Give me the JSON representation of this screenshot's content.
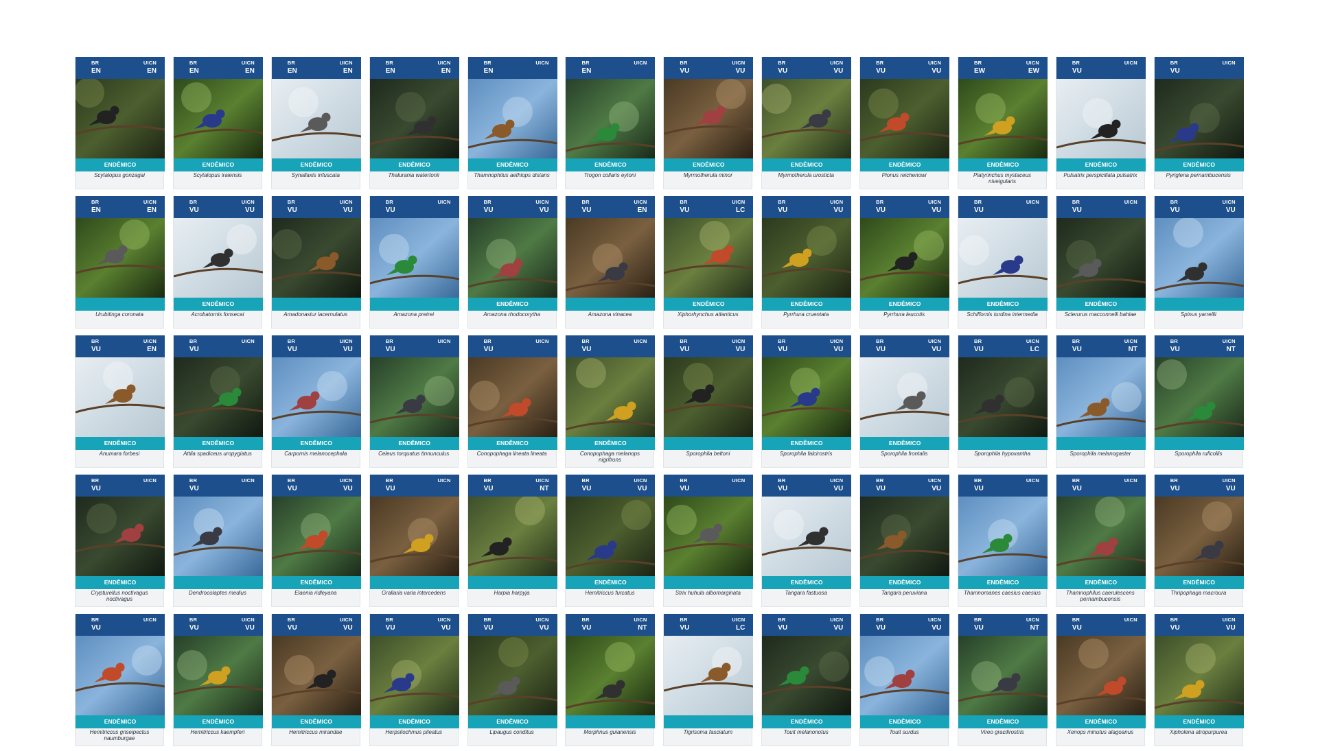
{
  "labels": {
    "br": "BR",
    "uicn": "UICN",
    "endemic": "ENDÊMICO"
  },
  "colors": {
    "header": "#1c4f8b",
    "endemic_band": "#17a3b8"
  },
  "cards": [
    {
      "br": "EN",
      "uicn": "EN",
      "endemic": true,
      "species": "Scytalopus gonzagai"
    },
    {
      "br": "EN",
      "uicn": "EN",
      "endemic": true,
      "species": "Scytalopus iraiensis"
    },
    {
      "br": "EN",
      "uicn": "EN",
      "endemic": true,
      "species": "Synallaxis infuscata"
    },
    {
      "br": "EN",
      "uicn": "EN",
      "endemic": true,
      "species": "Thalurania watertonii"
    },
    {
      "br": "EN",
      "uicn": "",
      "endemic": true,
      "species": "Thamnophilus aethiops distans"
    },
    {
      "br": "EN",
      "uicn": "",
      "endemic": true,
      "species": "Trogon collaris eytoni"
    },
    {
      "br": "VU",
      "uicn": "VU",
      "endemic": true,
      "species": "Myrmotherula minor"
    },
    {
      "br": "VU",
      "uicn": "VU",
      "endemic": true,
      "species": "Myrmotherula urosticta"
    },
    {
      "br": "VU",
      "uicn": "VU",
      "endemic": true,
      "species": "Pionus reichenowi"
    },
    {
      "br": "EW",
      "uicn": "EW",
      "endemic": true,
      "species": "Platyrinchus mystaceus niveigularis"
    },
    {
      "br": "VU",
      "uicn": "",
      "endemic": true,
      "species": "Pulsatrix perspicillata pulsatrix"
    },
    {
      "br": "VU",
      "uicn": "",
      "endemic": true,
      "species": "Pyriglena pernambucensis"
    },
    {
      "br": "EN",
      "uicn": "EN",
      "endemic": false,
      "species": "Urubitinga coronata"
    },
    {
      "br": "VU",
      "uicn": "VU",
      "endemic": true,
      "species": "Acrobatornis fonsecai"
    },
    {
      "br": "VU",
      "uicn": "VU",
      "endemic": false,
      "species": "Amadonastur lacernulatus"
    },
    {
      "br": "VU",
      "uicn": "",
      "endemic": false,
      "species": "Amazona pretrei"
    },
    {
      "br": "VU",
      "uicn": "VU",
      "endemic": true,
      "species": "Amazona rhodocorytha"
    },
    {
      "br": "VU",
      "uicn": "EN",
      "endemic": false,
      "species": "Amazona vinacea"
    },
    {
      "br": "VU",
      "uicn": "LC",
      "endemic": true,
      "species": "Xiphorhynchus atlanticus"
    },
    {
      "br": "VU",
      "uicn": "VU",
      "endemic": true,
      "species": "Pyrrhura cruentata"
    },
    {
      "br": "VU",
      "uicn": "VU",
      "endemic": true,
      "species": "Pyrrhura leucotis"
    },
    {
      "br": "VU",
      "uicn": "",
      "endemic": true,
      "species": "Schiffornis turdina intermedia"
    },
    {
      "br": "VU",
      "uicn": "",
      "endemic": true,
      "species": "Sclerurus macconnelli bahiae"
    },
    {
      "br": "VU",
      "uicn": "VU",
      "endemic": false,
      "species": "Spinus yarrellii"
    },
    {
      "br": "VU",
      "uicn": "EN",
      "endemic": true,
      "species": "Anumara forbesi"
    },
    {
      "br": "VU",
      "uicn": "",
      "endemic": true,
      "species": "Attila spadiceus uropygiatus"
    },
    {
      "br": "VU",
      "uicn": "VU",
      "endemic": true,
      "species": "Carpornis melanocephala"
    },
    {
      "br": "VU",
      "uicn": "",
      "endemic": true,
      "species": "Celeus torquatus tinnunculus"
    },
    {
      "br": "VU",
      "uicn": "",
      "endemic": true,
      "species": "Conopophaga lineata lineata"
    },
    {
      "br": "VU",
      "uicn": "",
      "endemic": true,
      "species": "Conopophaga melanops nigrifrons"
    },
    {
      "br": "VU",
      "uicn": "VU",
      "endemic": false,
      "species": "Sporophila beltoni"
    },
    {
      "br": "VU",
      "uicn": "VU",
      "endemic": true,
      "species": "Sporophila falcirostris"
    },
    {
      "br": "VU",
      "uicn": "VU",
      "endemic": true,
      "species": "Sporophila frontalis"
    },
    {
      "br": "VU",
      "uicn": "LC",
      "endemic": false,
      "species": "Sporophila hypoxantha"
    },
    {
      "br": "VU",
      "uicn": "NT",
      "endemic": false,
      "species": "Sporophila melanogaster"
    },
    {
      "br": "VU",
      "uicn": "NT",
      "endemic": false,
      "species": "Sporophila ruficollis"
    },
    {
      "br": "VU",
      "uicn": "",
      "endemic": true,
      "species": "Crypturellus noctivagus noctivagus"
    },
    {
      "br": "VU",
      "uicn": "",
      "endemic": false,
      "species": "Dendrocolaptes medius"
    },
    {
      "br": "VU",
      "uicn": "VU",
      "endemic": true,
      "species": "Elaenia ridleyana"
    },
    {
      "br": "VU",
      "uicn": "",
      "endemic": false,
      "species": "Grallaria varia intercedens"
    },
    {
      "br": "VU",
      "uicn": "NT",
      "endemic": false,
      "species": "Harpia harpyja"
    },
    {
      "br": "VU",
      "uicn": "VU",
      "endemic": true,
      "species": "Hemitriccus furcatus"
    },
    {
      "br": "VU",
      "uicn": "",
      "endemic": false,
      "species": "Strix huhula albomarginata"
    },
    {
      "br": "VU",
      "uicn": "VU",
      "endemic": true,
      "species": "Tangara fastuosa"
    },
    {
      "br": "VU",
      "uicn": "VU",
      "endemic": true,
      "species": "Tangara peruviana"
    },
    {
      "br": "VU",
      "uicn": "",
      "endemic": true,
      "species": "Thamnomanes caesius caesius"
    },
    {
      "br": "VU",
      "uicn": "",
      "endemic": true,
      "species": "Thamnophilus caerulescens pernambucensis"
    },
    {
      "br": "VU",
      "uicn": "VU",
      "endemic": true,
      "species": "Thripophaga macroura"
    },
    {
      "br": "VU",
      "uicn": "",
      "endemic": true,
      "species": "Hemitriccus griseipectus naumburgae"
    },
    {
      "br": "VU",
      "uicn": "VU",
      "endemic": true,
      "species": "Hemitriccus kaempferi"
    },
    {
      "br": "VU",
      "uicn": "VU",
      "endemic": true,
      "species": "Hemitriccus mirandae"
    },
    {
      "br": "VU",
      "uicn": "VU",
      "endemic": true,
      "species": "Herpsilochmus pileatus"
    },
    {
      "br": "VU",
      "uicn": "VU",
      "endemic": true,
      "species": "Lipaugus conditus"
    },
    {
      "br": "VU",
      "uicn": "NT",
      "endemic": false,
      "species": "Morphnus guianensis"
    },
    {
      "br": "VU",
      "uicn": "LC",
      "endemic": false,
      "species": "Tigrisoma fasciatum"
    },
    {
      "br": "VU",
      "uicn": "VU",
      "endemic": true,
      "species": "Touit melanonotus"
    },
    {
      "br": "VU",
      "uicn": "VU",
      "endemic": true,
      "species": "Touit surdus"
    },
    {
      "br": "VU",
      "uicn": "NT",
      "endemic": true,
      "species": "Vireo gracilirostris"
    },
    {
      "br": "VU",
      "uicn": "",
      "endemic": true,
      "species": "Xenops minutus alagoanus"
    },
    {
      "br": "VU",
      "uicn": "VU",
      "endemic": true,
      "species": "Xipholena atropurpurea"
    }
  ]
}
